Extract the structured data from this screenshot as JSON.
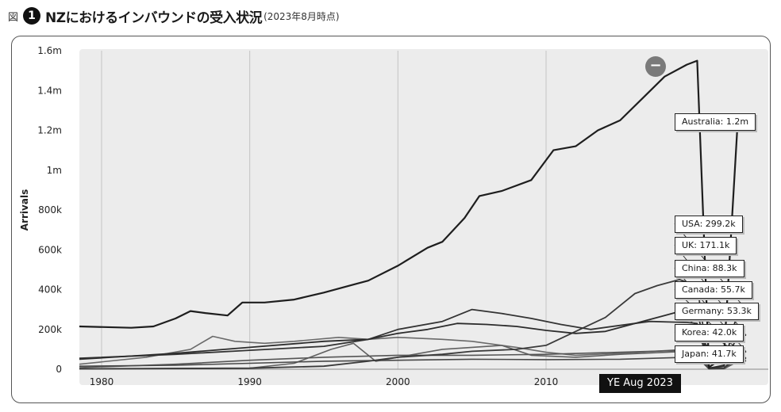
{
  "header": {
    "fig_label": "図",
    "fig_number": "1",
    "title": "NZにおけるインバウンドの受入状況",
    "note": "(2023年8月時点)"
  },
  "controls": {
    "collapse_symbol": "−",
    "period_badge": "YE Aug 2023"
  },
  "chart_data": {
    "type": "line",
    "title": "NZにおけるインバウンドの受入状況",
    "xlabel": "",
    "ylabel": "Arrivals",
    "xlim": [
      1978.5,
      2025
    ],
    "ylim": [
      0,
      1600000
    ],
    "x_ticks": [
      1980,
      1990,
      2000,
      2010
    ],
    "x_tick_labels": [
      "1980",
      "1990",
      "2000",
      "2010"
    ],
    "y_ticks": [
      0,
      200000,
      400000,
      600000,
      800000,
      1000000,
      1200000,
      1400000,
      1600000
    ],
    "y_tick_labels": [
      "0",
      "200k",
      "400k",
      "600k",
      "800k",
      "1m",
      "1.2m",
      "1.4m",
      "1.6m"
    ],
    "grid": "vertical",
    "legend_placement": "right",
    "series": [
      {
        "name": "Australia",
        "label": "Australia: 1.2m",
        "color": "#1e1e1e",
        "width": 2.2,
        "points": [
          [
            1978.5,
            215000
          ],
          [
            1982,
            208000
          ],
          [
            1983.5,
            215000
          ],
          [
            1985,
            255000
          ],
          [
            1986,
            292000
          ],
          [
            1987,
            282000
          ],
          [
            1988.5,
            270000
          ],
          [
            1989.5,
            335000
          ],
          [
            1991,
            335000
          ],
          [
            1993,
            350000
          ],
          [
            1995,
            385000
          ],
          [
            1997,
            425000
          ],
          [
            1998,
            445000
          ],
          [
            2000,
            520000
          ],
          [
            2002,
            610000
          ],
          [
            2003,
            640000
          ],
          [
            2004.5,
            760000
          ],
          [
            2005.5,
            870000
          ],
          [
            2007,
            895000
          ],
          [
            2009,
            950000
          ],
          [
            2010.5,
            1100000
          ],
          [
            2012,
            1120000
          ],
          [
            2013.5,
            1200000
          ],
          [
            2015,
            1250000
          ],
          [
            2016.5,
            1360000
          ],
          [
            2018,
            1470000
          ],
          [
            2019.5,
            1530000
          ],
          [
            2020.2,
            1550000
          ],
          [
            2021,
            10000
          ],
          [
            2022,
            60000
          ],
          [
            2022.9,
            1200000
          ],
          [
            2023.5,
            1230000
          ]
        ]
      },
      {
        "name": "USA",
        "label": "USA: 299.2k",
        "color": "#2c2c2c",
        "width": 1.8,
        "points": [
          [
            1978.5,
            50000
          ],
          [
            1985,
            80000
          ],
          [
            1990,
            110000
          ],
          [
            1995,
            140000
          ],
          [
            1998,
            150000
          ],
          [
            2000,
            180000
          ],
          [
            2002,
            200000
          ],
          [
            2004,
            230000
          ],
          [
            2006,
            225000
          ],
          [
            2008,
            215000
          ],
          [
            2010,
            195000
          ],
          [
            2012,
            180000
          ],
          [
            2014,
            190000
          ],
          [
            2016,
            230000
          ],
          [
            2018,
            270000
          ],
          [
            2019.5,
            300000
          ],
          [
            2020.2,
            300000
          ],
          [
            2021,
            5000
          ],
          [
            2022,
            20000
          ],
          [
            2022.9,
            280000
          ],
          [
            2023.5,
            299200
          ]
        ]
      },
      {
        "name": "UK",
        "label": "UK: 171.1k",
        "color": "#333333",
        "width": 1.8,
        "points": [
          [
            1978.5,
            55000
          ],
          [
            1985,
            75000
          ],
          [
            1990,
            95000
          ],
          [
            1995,
            115000
          ],
          [
            1998,
            150000
          ],
          [
            2000,
            200000
          ],
          [
            2003,
            240000
          ],
          [
            2005,
            300000
          ],
          [
            2007,
            280000
          ],
          [
            2009,
            255000
          ],
          [
            2011,
            225000
          ],
          [
            2013,
            200000
          ],
          [
            2015,
            220000
          ],
          [
            2017,
            240000
          ],
          [
            2019.5,
            235000
          ],
          [
            2020.2,
            230000
          ],
          [
            2021,
            5000
          ],
          [
            2022,
            15000
          ],
          [
            2022.9,
            165000
          ],
          [
            2023.5,
            171100
          ]
        ]
      },
      {
        "name": "China",
        "label": "China: 88.3k",
        "color": "#3a3a3a",
        "width": 1.8,
        "points": [
          [
            1978.5,
            2000
          ],
          [
            1990,
            5000
          ],
          [
            1995,
            15000
          ],
          [
            1998,
            40000
          ],
          [
            2000,
            60000
          ],
          [
            2003,
            75000
          ],
          [
            2005,
            90000
          ],
          [
            2008,
            100000
          ],
          [
            2010,
            120000
          ],
          [
            2012,
            190000
          ],
          [
            2014,
            260000
          ],
          [
            2016,
            380000
          ],
          [
            2017.5,
            420000
          ],
          [
            2019,
            450000
          ],
          [
            2020.2,
            420000
          ],
          [
            2021,
            5000
          ],
          [
            2022,
            5000
          ],
          [
            2022.9,
            70000
          ],
          [
            2023.5,
            88300
          ]
        ]
      },
      {
        "name": "Canada",
        "label": "Canada: 55.7k",
        "color": "#484848",
        "width": 1.6,
        "points": [
          [
            1978.5,
            15000
          ],
          [
            1985,
            20000
          ],
          [
            1990,
            30000
          ],
          [
            1995,
            40000
          ],
          [
            2000,
            45000
          ],
          [
            2005,
            50000
          ],
          [
            2010,
            48000
          ],
          [
            2015,
            50000
          ],
          [
            2019.5,
            60000
          ],
          [
            2020.2,
            60000
          ],
          [
            2021,
            1000
          ],
          [
            2022,
            5000
          ],
          [
            2022.9,
            52000
          ],
          [
            2023.5,
            55700
          ]
        ]
      },
      {
        "name": "Germany",
        "label": "Germany: 53.3k",
        "color": "#555555",
        "width": 1.6,
        "points": [
          [
            1978.5,
            8000
          ],
          [
            1985,
            25000
          ],
          [
            1990,
            45000
          ],
          [
            1995,
            60000
          ],
          [
            2000,
            70000
          ],
          [
            2005,
            70000
          ],
          [
            2010,
            75000
          ],
          [
            2015,
            85000
          ],
          [
            2019.5,
            95000
          ],
          [
            2020.2,
            95000
          ],
          [
            2021,
            1000
          ],
          [
            2022,
            5000
          ],
          [
            2022.9,
            50000
          ],
          [
            2023.5,
            53300
          ]
        ]
      },
      {
        "name": "Korea",
        "label": "Korea: 42.0k",
        "color": "#606060",
        "width": 1.6,
        "points": [
          [
            1978.5,
            1000
          ],
          [
            1990,
            5000
          ],
          [
            1993,
            30000
          ],
          [
            1995.5,
            100000
          ],
          [
            1997,
            130000
          ],
          [
            1998.5,
            40000
          ],
          [
            2000,
            60000
          ],
          [
            2003,
            100000
          ],
          [
            2005,
            110000
          ],
          [
            2007,
            120000
          ],
          [
            2009,
            70000
          ],
          [
            2012,
            60000
          ],
          [
            2015,
            75000
          ],
          [
            2019.5,
            90000
          ],
          [
            2020.2,
            85000
          ],
          [
            2021,
            1000
          ],
          [
            2022,
            2000
          ],
          [
            2022.9,
            38000
          ],
          [
            2023.5,
            42000
          ]
        ]
      },
      {
        "name": "Japan",
        "label": "Japan: 41.7k",
        "color": "#6a6a6a",
        "width": 1.6,
        "points": [
          [
            1978.5,
            25000
          ],
          [
            1983,
            60000
          ],
          [
            1986,
            100000
          ],
          [
            1987.5,
            165000
          ],
          [
            1989,
            140000
          ],
          [
            1991,
            130000
          ],
          [
            1993,
            140000
          ],
          [
            1996,
            160000
          ],
          [
            1998,
            150000
          ],
          [
            2000,
            160000
          ],
          [
            2003,
            150000
          ],
          [
            2005,
            140000
          ],
          [
            2008,
            110000
          ],
          [
            2010,
            85000
          ],
          [
            2012,
            70000
          ],
          [
            2015,
            80000
          ],
          [
            2019.5,
            100000
          ],
          [
            2020.2,
            100000
          ],
          [
            2021,
            1000
          ],
          [
            2022,
            2000
          ],
          [
            2022.9,
            38000
          ],
          [
            2023.5,
            41700
          ]
        ]
      }
    ]
  }
}
